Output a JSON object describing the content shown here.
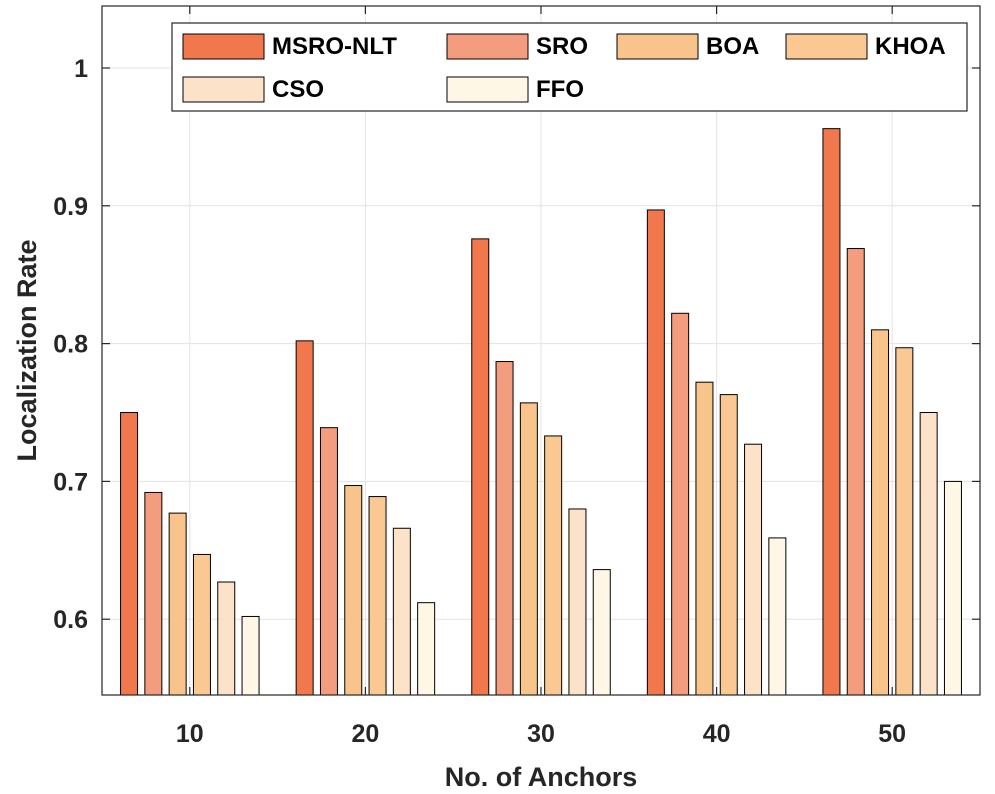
{
  "chart_data": {
    "type": "bar",
    "title": "",
    "xlabel": "No. of Anchors",
    "ylabel": "Localization Rate",
    "categories": [
      "10",
      "20",
      "30",
      "40",
      "50"
    ],
    "ylim": [
      0.545,
      1.045
    ],
    "yticks": [
      0.6,
      0.7,
      0.8,
      0.9,
      1
    ],
    "ytick_labels": [
      "0.6",
      "0.7",
      "0.8",
      "0.9",
      "1"
    ],
    "grid": true,
    "legend_position": "top",
    "series": [
      {
        "name": "MSRO-NLT",
        "color": "#F0784C",
        "values": [
          0.75,
          0.802,
          0.876,
          0.897,
          0.956
        ]
      },
      {
        "name": "SRO",
        "color": "#F49C7E",
        "values": [
          0.692,
          0.739,
          0.787,
          0.822,
          0.869
        ]
      },
      {
        "name": "BOA",
        "color": "#F9C48C",
        "values": [
          0.677,
          0.697,
          0.757,
          0.772,
          0.81
        ]
      },
      {
        "name": "KHOA",
        "color": "#FAC893",
        "values": [
          0.647,
          0.689,
          0.733,
          0.763,
          0.797
        ]
      },
      {
        "name": "CSO",
        "color": "#FCE2C8",
        "values": [
          0.627,
          0.666,
          0.68,
          0.727,
          0.75
        ]
      },
      {
        "name": "FFO",
        "color": "#FEF7E6",
        "values": [
          0.602,
          0.612,
          0.636,
          0.659,
          0.7
        ]
      }
    ]
  }
}
